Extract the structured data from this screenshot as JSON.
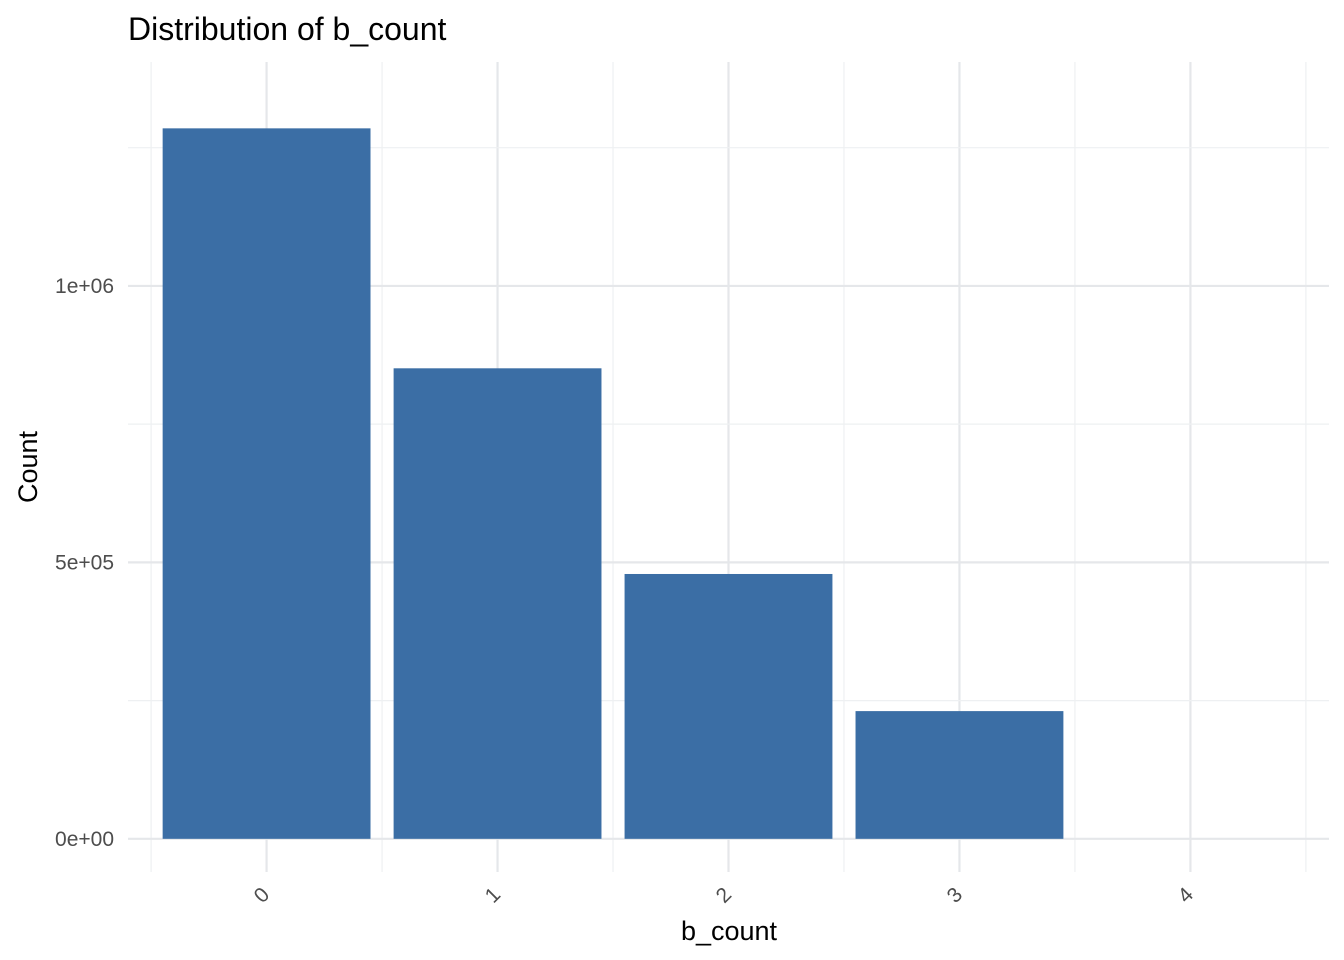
{
  "chart_data": {
    "type": "bar",
    "title": "Distribution of b_count",
    "xlabel": "b_count",
    "ylabel": "Count",
    "categories": [
      "0",
      "1",
      "2",
      "3",
      "4"
    ],
    "values": [
      1285000,
      851000,
      479000,
      231000,
      0
    ],
    "ylim": [
      -60000,
      1405000
    ],
    "y_ticks": [
      0,
      500000,
      1000000
    ],
    "y_tick_labels": [
      "0e+00",
      "5e+05",
      "1e+06"
    ],
    "x_tick_rotation_deg": -45,
    "grid": true,
    "legend": "none",
    "bar_color": "#3b6ea5"
  }
}
